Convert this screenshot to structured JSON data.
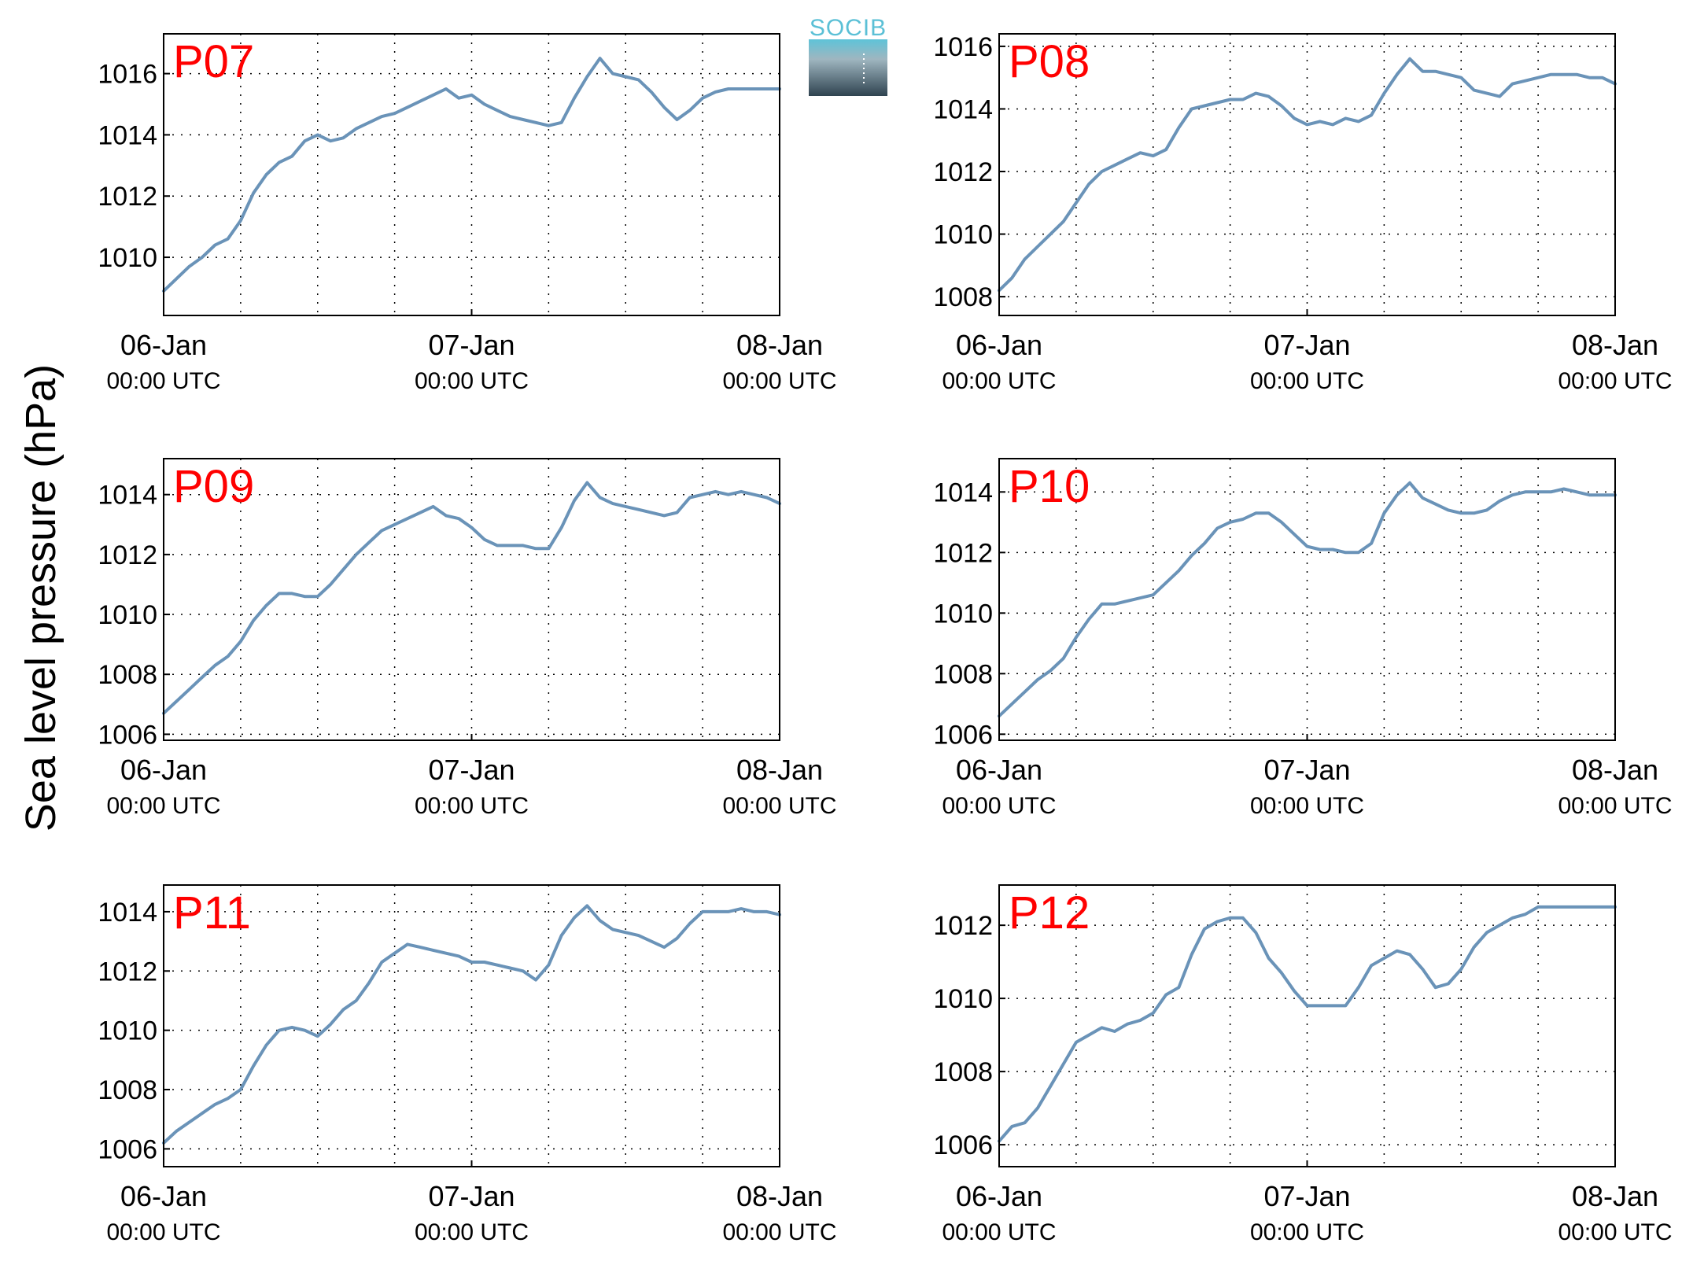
{
  "figure": {
    "ylabel": "Sea level pressure (hPa)",
    "logo_text": "SOCIB",
    "xtick_dates": [
      "06-Jan",
      "07-Jan",
      "08-Jan"
    ],
    "xtick_time": "00:00 UTC",
    "line_color": "#6a93b8",
    "title_color": "#ff0000"
  },
  "chart_data": [
    {
      "type": "line",
      "title": "P07",
      "xlabel": "",
      "ylabel": "Sea level pressure (hPa)",
      "xlim": [
        0,
        48
      ],
      "ylim": [
        1008.1,
        1017.3
      ],
      "yticks": [
        1010,
        1012,
        1014,
        1016
      ],
      "grid": true,
      "x": [
        0,
        1,
        2,
        3,
        4,
        5,
        6,
        7,
        8,
        9,
        10,
        11,
        12,
        13,
        14,
        15,
        16,
        17,
        18,
        19,
        20,
        21,
        22,
        23,
        24,
        25,
        26,
        27,
        28,
        29,
        30,
        31,
        32,
        33,
        34,
        35,
        36,
        37,
        38,
        39,
        40,
        41,
        42,
        43,
        44,
        45,
        46,
        47,
        48
      ],
      "y": [
        1008.9,
        1009.3,
        1009.7,
        1010.0,
        1010.4,
        1010.6,
        1011.2,
        1012.1,
        1012.7,
        1013.1,
        1013.3,
        1013.8,
        1014.0,
        1013.8,
        1013.9,
        1014.2,
        1014.4,
        1014.6,
        1014.7,
        1014.9,
        1015.1,
        1015.3,
        1015.5,
        1015.2,
        1015.3,
        1015.0,
        1014.8,
        1014.6,
        1014.5,
        1014.4,
        1014.3,
        1014.4,
        1015.2,
        1015.9,
        1016.5,
        1016.0,
        1015.9,
        1015.8,
        1015.4,
        1014.9,
        1014.5,
        1014.8,
        1015.2,
        1015.4,
        1015.5,
        1015.5,
        1015.5,
        1015.5,
        1015.5
      ]
    },
    {
      "type": "line",
      "title": "P08",
      "xlabel": "",
      "ylabel": "Sea level pressure (hPa)",
      "xlim": [
        0,
        48
      ],
      "ylim": [
        1007.4,
        1016.4
      ],
      "yticks": [
        1008,
        1010,
        1012,
        1014,
        1016
      ],
      "grid": true,
      "x": [
        0,
        1,
        2,
        3,
        4,
        5,
        6,
        7,
        8,
        9,
        10,
        11,
        12,
        13,
        14,
        15,
        16,
        17,
        18,
        19,
        20,
        21,
        22,
        23,
        24,
        25,
        26,
        27,
        28,
        29,
        30,
        31,
        32,
        33,
        34,
        35,
        36,
        37,
        38,
        39,
        40,
        41,
        42,
        43,
        44,
        45,
        46,
        47,
        48
      ],
      "y": [
        1008.2,
        1008.6,
        1009.2,
        1009.6,
        1010.0,
        1010.4,
        1011.0,
        1011.6,
        1012.0,
        1012.2,
        1012.4,
        1012.6,
        1012.5,
        1012.7,
        1013.4,
        1014.0,
        1014.1,
        1014.2,
        1014.3,
        1014.3,
        1014.5,
        1014.4,
        1014.1,
        1013.7,
        1013.5,
        1013.6,
        1013.5,
        1013.7,
        1013.6,
        1013.8,
        1014.5,
        1015.1,
        1015.6,
        1015.2,
        1015.2,
        1015.1,
        1015.0,
        1014.6,
        1014.5,
        1014.4,
        1014.8,
        1014.9,
        1015.0,
        1015.1,
        1015.1,
        1015.1,
        1015.0,
        1015.0,
        1014.8
      ]
    },
    {
      "type": "line",
      "title": "P09",
      "xlabel": "",
      "ylabel": "Sea level pressure (hPa)",
      "xlim": [
        0,
        48
      ],
      "ylim": [
        1005.8,
        1015.2
      ],
      "yticks": [
        1006,
        1008,
        1010,
        1012,
        1014
      ],
      "grid": true,
      "x": [
        0,
        1,
        2,
        3,
        4,
        5,
        6,
        7,
        8,
        9,
        10,
        11,
        12,
        13,
        14,
        15,
        16,
        17,
        18,
        19,
        20,
        21,
        22,
        23,
        24,
        25,
        26,
        27,
        28,
        29,
        30,
        31,
        32,
        33,
        34,
        35,
        36,
        37,
        38,
        39,
        40,
        41,
        42,
        43,
        44,
        45,
        46,
        47,
        48
      ],
      "y": [
        1006.7,
        1007.1,
        1007.5,
        1007.9,
        1008.3,
        1008.6,
        1009.1,
        1009.8,
        1010.3,
        1010.7,
        1010.7,
        1010.6,
        1010.6,
        1011.0,
        1011.5,
        1012.0,
        1012.4,
        1012.8,
        1013.0,
        1013.2,
        1013.4,
        1013.6,
        1013.3,
        1013.2,
        1012.9,
        1012.5,
        1012.3,
        1012.3,
        1012.3,
        1012.2,
        1012.2,
        1012.9,
        1013.8,
        1014.4,
        1013.9,
        1013.7,
        1013.6,
        1013.5,
        1013.4,
        1013.3,
        1013.4,
        1013.9,
        1014.0,
        1014.1,
        1014.0,
        1014.1,
        1014.0,
        1013.9,
        1013.7
      ]
    },
    {
      "type": "line",
      "title": "P10",
      "xlabel": "",
      "ylabel": "Sea level pressure (hPa)",
      "xlim": [
        0,
        48
      ],
      "ylim": [
        1005.8,
        1015.1
      ],
      "yticks": [
        1006,
        1008,
        1010,
        1012,
        1014
      ],
      "grid": true,
      "x": [
        0,
        1,
        2,
        3,
        4,
        5,
        6,
        7,
        8,
        9,
        10,
        11,
        12,
        13,
        14,
        15,
        16,
        17,
        18,
        19,
        20,
        21,
        22,
        23,
        24,
        25,
        26,
        27,
        28,
        29,
        30,
        31,
        32,
        33,
        34,
        35,
        36,
        37,
        38,
        39,
        40,
        41,
        42,
        43,
        44,
        45,
        46,
        47,
        48
      ],
      "y": [
        1006.6,
        1007.0,
        1007.4,
        1007.8,
        1008.1,
        1008.5,
        1009.2,
        1009.8,
        1010.3,
        1010.3,
        1010.4,
        1010.5,
        1010.6,
        1011.0,
        1011.4,
        1011.9,
        1012.3,
        1012.8,
        1013.0,
        1013.1,
        1013.3,
        1013.3,
        1013.0,
        1012.6,
        1012.2,
        1012.1,
        1012.1,
        1012.0,
        1012.0,
        1012.3,
        1013.3,
        1013.9,
        1014.3,
        1013.8,
        1013.6,
        1013.4,
        1013.3,
        1013.3,
        1013.4,
        1013.7,
        1013.9,
        1014.0,
        1014.0,
        1014.0,
        1014.1,
        1014.0,
        1013.9,
        1013.9,
        1013.9
      ]
    },
    {
      "type": "line",
      "title": "P11",
      "xlabel": "",
      "ylabel": "Sea level pressure (hPa)",
      "xlim": [
        0,
        48
      ],
      "ylim": [
        1005.4,
        1014.9
      ],
      "yticks": [
        1006,
        1008,
        1010,
        1012,
        1014
      ],
      "grid": true,
      "x": [
        0,
        1,
        2,
        3,
        4,
        5,
        6,
        7,
        8,
        9,
        10,
        11,
        12,
        13,
        14,
        15,
        16,
        17,
        18,
        19,
        20,
        21,
        22,
        23,
        24,
        25,
        26,
        27,
        28,
        29,
        30,
        31,
        32,
        33,
        34,
        35,
        36,
        37,
        38,
        39,
        40,
        41,
        42,
        43,
        44,
        45,
        46,
        47,
        48
      ],
      "y": [
        1006.2,
        1006.6,
        1006.9,
        1007.2,
        1007.5,
        1007.7,
        1008.0,
        1008.8,
        1009.5,
        1010.0,
        1010.1,
        1010.0,
        1009.8,
        1010.2,
        1010.7,
        1011.0,
        1011.6,
        1012.3,
        1012.6,
        1012.9,
        1012.8,
        1012.7,
        1012.6,
        1012.5,
        1012.3,
        1012.3,
        1012.2,
        1012.1,
        1012.0,
        1011.7,
        1012.2,
        1013.2,
        1013.8,
        1014.2,
        1013.7,
        1013.4,
        1013.3,
        1013.2,
        1013.0,
        1012.8,
        1013.1,
        1013.6,
        1014.0,
        1014.0,
        1014.0,
        1014.1,
        1014.0,
        1014.0,
        1013.9
      ]
    },
    {
      "type": "line",
      "title": "P12",
      "xlabel": "",
      "ylabel": "Sea level pressure (hPa)",
      "xlim": [
        0,
        48
      ],
      "ylim": [
        1005.4,
        1013.1
      ],
      "yticks": [
        1006,
        1008,
        1010,
        1012
      ],
      "grid": true,
      "x": [
        0,
        1,
        2,
        3,
        4,
        5,
        6,
        7,
        8,
        9,
        10,
        11,
        12,
        13,
        14,
        15,
        16,
        17,
        18,
        19,
        20,
        21,
        22,
        23,
        24,
        25,
        26,
        27,
        28,
        29,
        30,
        31,
        32,
        33,
        34,
        35,
        36,
        37,
        38,
        39,
        40,
        41,
        42,
        43,
        44,
        45,
        46,
        47,
        48
      ],
      "y": [
        1006.1,
        1006.5,
        1006.6,
        1007.0,
        1007.6,
        1008.2,
        1008.8,
        1009.0,
        1009.2,
        1009.1,
        1009.3,
        1009.4,
        1009.6,
        1010.1,
        1010.3,
        1011.2,
        1011.9,
        1012.1,
        1012.2,
        1012.2,
        1011.8,
        1011.1,
        1010.7,
        1010.2,
        1009.8,
        1009.8,
        1009.8,
        1009.8,
        1010.3,
        1010.9,
        1011.1,
        1011.3,
        1011.2,
        1010.8,
        1010.3,
        1010.4,
        1010.8,
        1011.4,
        1011.8,
        1012.0,
        1012.2,
        1012.3,
        1012.5,
        1012.5,
        1012.5,
        1012.5,
        1012.5,
        1012.5,
        1012.5
      ]
    }
  ]
}
